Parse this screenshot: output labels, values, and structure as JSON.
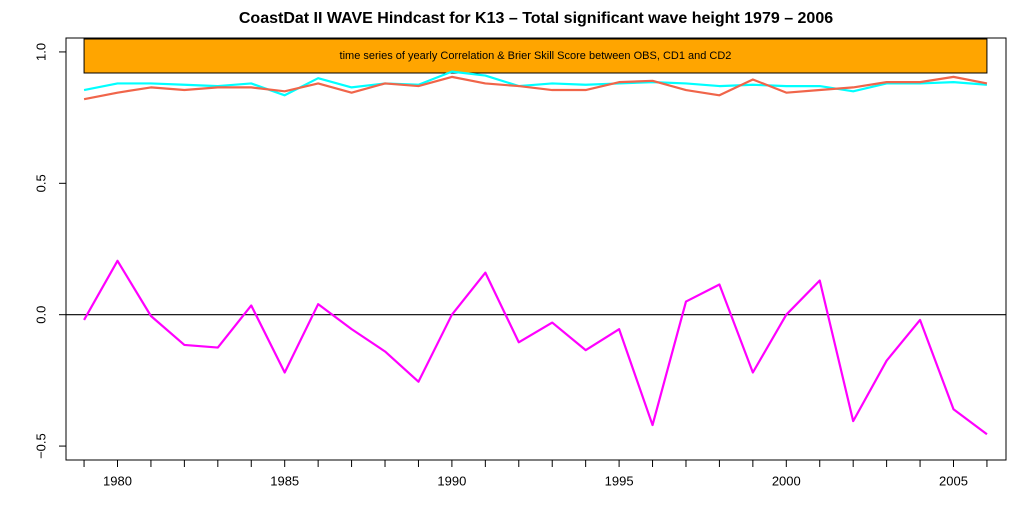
{
  "chart_data": {
    "type": "line",
    "title": "CoastDat II WAVE Hindcast for K13 – Total significant wave height 1979 – 2006",
    "annotation": "time series of yearly Correlation & Brier Skill Score between OBS, CD1 and CD2",
    "annotation_color": "#ffa500",
    "x": [
      1979,
      1980,
      1981,
      1982,
      1983,
      1984,
      1985,
      1986,
      1987,
      1988,
      1989,
      1990,
      1991,
      1992,
      1993,
      1994,
      1995,
      1996,
      1997,
      1998,
      1999,
      2000,
      2001,
      2002,
      2003,
      2004,
      2005,
      2006
    ],
    "series": [
      {
        "color": "#00ffff",
        "values": [
          0.855,
          0.88,
          0.88,
          0.875,
          0.87,
          0.88,
          0.835,
          0.9,
          0.865,
          0.88,
          0.875,
          0.925,
          0.91,
          0.87,
          0.88,
          0.875,
          0.88,
          0.885,
          0.88,
          0.87,
          0.875,
          0.87,
          0.87,
          0.85,
          0.88,
          0.88,
          0.885,
          0.875
        ]
      },
      {
        "color": "#f0654a",
        "values": [
          0.82,
          0.845,
          0.865,
          0.855,
          0.865,
          0.865,
          0.85,
          0.88,
          0.845,
          0.88,
          0.87,
          0.905,
          0.88,
          0.87,
          0.855,
          0.855,
          0.885,
          0.89,
          0.855,
          0.835,
          0.895,
          0.845,
          0.855,
          0.865,
          0.885,
          0.885,
          0.905,
          0.88
        ]
      },
      {
        "color": "#ff00ff",
        "values": [
          -0.02,
          0.205,
          -0.005,
          -0.115,
          -0.125,
          0.035,
          -0.22,
          0.04,
          -0.055,
          -0.14,
          -0.255,
          0,
          0.16,
          -0.105,
          -0.03,
          -0.135,
          -0.055,
          -0.42,
          0.05,
          0.115,
          -0.22,
          0,
          0.13,
          -0.405,
          -0.175,
          -0.02,
          -0.36,
          -0.455
        ]
      }
    ],
    "xlim": [
      1978.46,
      2006.57
    ],
    "xticks": [
      1980,
      1985,
      1990,
      1995,
      2000,
      2005
    ],
    "ylim": [
      -0.553,
      1.053
    ],
    "yticks": [
      {
        "value": -0.5,
        "label": "−0.5"
      },
      {
        "value": 0,
        "label": "0.0"
      },
      0.5,
      {
        "value": 1,
        "label": "1.0"
      }
    ],
    "hline": 0
  }
}
